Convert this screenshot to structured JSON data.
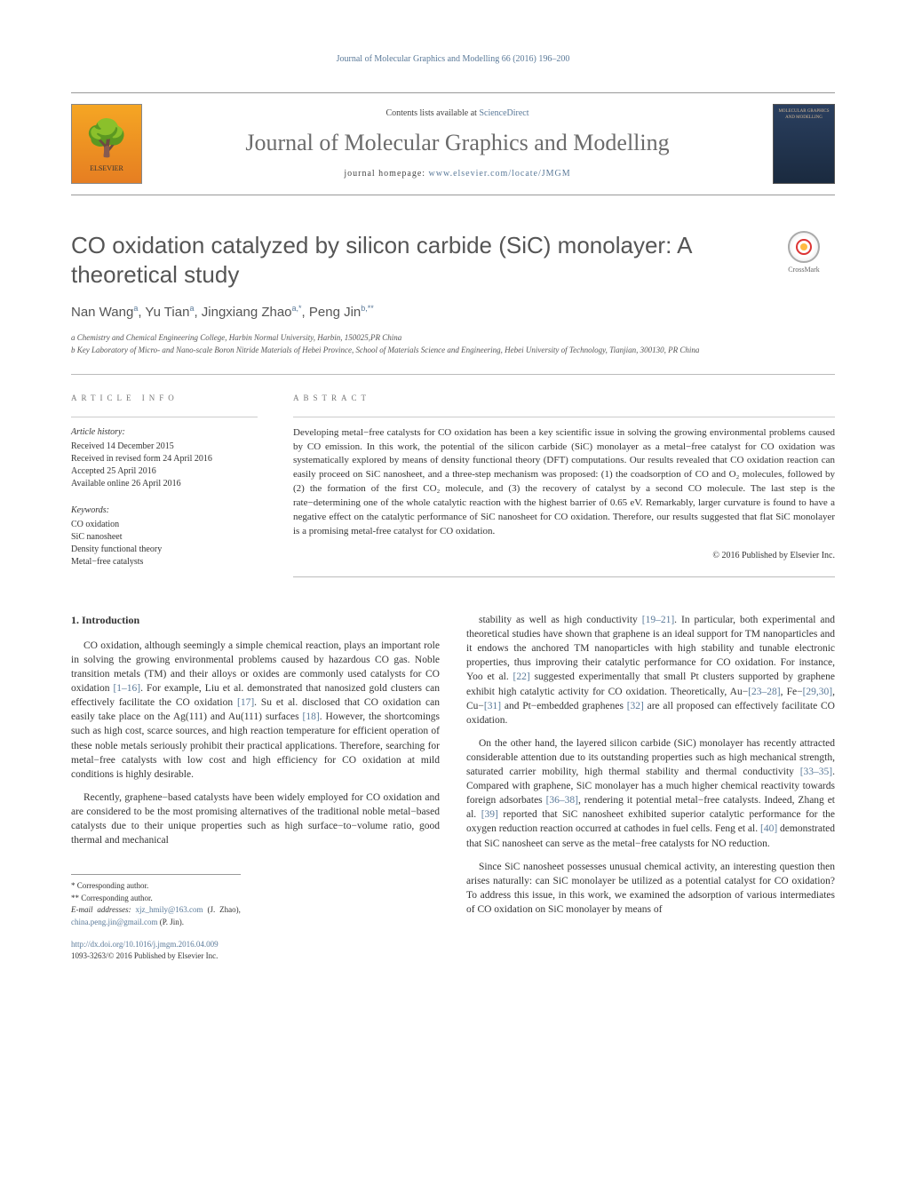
{
  "running_head": "Journal of Molecular Graphics and Modelling 66 (2016) 196–200",
  "masthead": {
    "contents_prefix": "Contents lists available at ",
    "contents_link": "ScienceDirect",
    "journal_title": "Journal of Molecular Graphics and Modelling",
    "homepage_prefix": "journal homepage: ",
    "homepage_url": "www.elsevier.com/locate/JMGM",
    "publisher_name": "ELSEVIER",
    "cover_text": "MOLECULAR GRAPHICS AND MODELLING"
  },
  "crossmark": "CrossMark",
  "article": {
    "title": "CO oxidation catalyzed by silicon carbide (SiC) monolayer: A theoretical study",
    "authors_html": "Nan Wang<sup>a</sup>, Yu Tian<sup>a</sup>, Jingxiang Zhao<sup>a,*</sup>, Peng Jin<sup>b,**</sup>",
    "affiliations": [
      "a Chemistry and Chemical Engineering College, Harbin Normal University, Harbin, 150025,PR China",
      "b Key Laboratory of Micro- and Nano-scale Boron Nitride Materials of Hebei Province, School of Materials Science and Engineering, Hebei University of Technology, Tianjian, 300130, PR China"
    ]
  },
  "info": {
    "heading": "article info",
    "history_label": "Article history:",
    "history": [
      "Received 14 December 2015",
      "Received in revised form 24 April 2016",
      "Accepted 25 April 2016",
      "Available online 26 April 2016"
    ],
    "keywords_label": "Keywords:",
    "keywords": [
      "CO oxidation",
      "SiC nanosheet",
      "Density functional theory",
      "Metal−free catalysts"
    ]
  },
  "abstract": {
    "heading": "abstract",
    "text": "Developing metal−free catalysts for CO oxidation has been a key scientific issue in solving the growing environmental problems caused by CO emission. In this work, the potential of the silicon carbide (SiC) monolayer as a metal−free catalyst for CO oxidation was systematically explored by means of density functional theory (DFT) computations. Our results revealed that CO oxidation reaction can easily proceed on SiC nanosheet, and a three-step mechanism was proposed: (1) the coadsorption of CO and O₂ molecules, followed by (2) the formation of the first CO₂ molecule, and (3) the recovery of catalyst by a second CO molecule. The last step is the rate−determining one of the whole catalytic reaction with the highest barrier of 0.65 eV. Remarkably, larger curvature is found to have a negative effect on the catalytic performance of SiC nanosheet for CO oxidation. Therefore, our results suggested that flat SiC monolayer is a promising metal-free catalyst for CO oxidation.",
    "copyright": "© 2016 Published by Elsevier Inc."
  },
  "body": {
    "heading1": "1. Introduction",
    "col1": {
      "p1_pre": "CO oxidation, although seemingly a simple chemical reaction, plays an important role in solving the growing environmental problems caused by hazardous CO gas. Noble transition metals (TM) and their alloys or oxides are commonly used catalysts for CO oxidation ",
      "p1_ref1": "[1–16]",
      "p1_mid1": ". For example, Liu et al. demonstrated that nanosized gold clusters can effectively facilitate the CO oxidation ",
      "p1_ref2": "[17]",
      "p1_mid2": ". Su et al. disclosed that CO oxidation can easily take place on the Ag(111) and Au(111) surfaces ",
      "p1_ref3": "[18]",
      "p1_post": ". However, the shortcomings such as high cost, scarce sources, and high reaction temperature for efficient operation of these noble metals seriously prohibit their practical applications. Therefore, searching for metal−free catalysts with low cost and high efficiency for CO oxidation at mild conditions is highly desirable.",
      "p2": "Recently, graphene−based catalysts have been widely employed for CO oxidation and are considered to be the most promising alternatives of the traditional noble metal−based catalysts due to their unique properties such as high surface−to−volume ratio, good thermal and mechanical"
    },
    "col2": {
      "p1_pre": "stability as well as high conductivity ",
      "p1_ref1": "[19–21]",
      "p1_mid1": ". In particular, both experimental and theoretical studies have shown that graphene is an ideal support for TM nanoparticles and it endows the anchored TM nanoparticles with high stability and tunable electronic properties, thus improving their catalytic performance for CO oxidation. For instance, Yoo et al. ",
      "p1_ref2": "[22]",
      "p1_mid2": " suggested experimentally that small Pt clusters supported by graphene exhibit high catalytic activity for CO oxidation. Theoretically, Au−",
      "p1_ref3": "[23–28]",
      "p1_mid3": ", Fe−",
      "p1_ref4": "[29,30]",
      "p1_mid4": ", Cu−",
      "p1_ref5": "[31]",
      "p1_mid5": " and Pt−embedded graphenes ",
      "p1_ref6": "[32]",
      "p1_post": " are all proposed can effectively facilitate CO oxidation.",
      "p2_pre": "On the other hand, the layered silicon carbide (SiC) monolayer has recently attracted considerable attention due to its outstanding properties such as high mechanical strength, saturated carrier mobility, high thermal stability and thermal conductivity ",
      "p2_ref1": "[33–35]",
      "p2_mid1": ". Compared with graphene, SiC monolayer has a much higher chemical reactivity towards foreign adsorbates ",
      "p2_ref2": "[36–38]",
      "p2_mid2": ", rendering it potential metal−free catalysts. Indeed, Zhang et al. ",
      "p2_ref3": "[39]",
      "p2_mid3": " reported that SiC nanosheet exhibited superior catalytic performance for the oxygen reduction reaction occurred at cathodes in fuel cells. Feng et al. ",
      "p2_ref4": "[40]",
      "p2_post": " demonstrated that SiC nanosheet can serve as the metal−free catalysts for NO reduction.",
      "p3": "Since SiC nanosheet possesses unusual chemical activity, an interesting question then arises naturally: can SiC monolayer be utilized as a potential catalyst for CO oxidation? To address this issue, in this work, we examined the adsorption of various intermediates of CO oxidation on SiC monolayer by means of"
    }
  },
  "footnotes": {
    "corr1": "* Corresponding author.",
    "corr2": "** Corresponding author.",
    "email_label": "E-mail addresses: ",
    "email1": "xjz_hmily@163.com",
    "email1_who": " (J. Zhao), ",
    "email2": "china.peng.jin@gmail.com",
    "email2_who": " (P. Jin)."
  },
  "doi": {
    "url": "http://dx.doi.org/10.1016/j.jmgm.2016.04.009",
    "issn_line": "1093-3263/© 2016 Published by Elsevier Inc."
  },
  "colors": {
    "link": "#5b7a99",
    "text": "#333333",
    "heading_grey": "#6b6b6b"
  }
}
